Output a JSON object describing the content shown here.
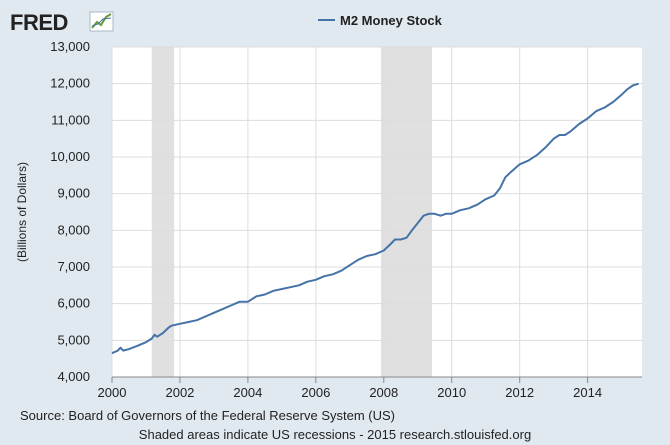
{
  "logo": {
    "text": "FRED"
  },
  "footer": {
    "source": "Source: Board of Governors of the Federal Reserve System (US)",
    "note": "Shaded areas indicate US recessions - 2015 research.stlouisfed.org"
  },
  "colors": {
    "background": "#e1e9f0",
    "plot_bg": "#ffffff",
    "line": "#4572a7",
    "recession": "#e0e0e0",
    "grid": "#dddddd"
  },
  "chart_data": {
    "type": "line",
    "title": "",
    "xlabel": "",
    "ylabel": "(Billions of Dollars)",
    "xlim": [
      2000.0,
      2015.6
    ],
    "ylim": [
      4000,
      13000
    ],
    "grid": true,
    "legend_position": "top-center",
    "x_ticks": [
      2000,
      2002,
      2004,
      2006,
      2008,
      2010,
      2012,
      2014
    ],
    "x_tick_labels": [
      "2000",
      "2002",
      "2004",
      "2006",
      "2008",
      "2010",
      "2012",
      "2014"
    ],
    "y_ticks": [
      4000,
      5000,
      6000,
      7000,
      8000,
      9000,
      10000,
      11000,
      12000,
      13000
    ],
    "y_tick_labels": [
      "4,000",
      "5,000",
      "6,000",
      "7,000",
      "8,000",
      "9,000",
      "10,000",
      "11,000",
      "12,000",
      "13,000"
    ],
    "recessions": [
      [
        2001.17,
        2001.83
      ],
      [
        2007.92,
        2009.42
      ]
    ],
    "series": [
      {
        "name": "M2 Money Stock",
        "x": [
          2000.0,
          2000.17,
          2000.25,
          2000.33,
          2000.5,
          2000.75,
          2001.0,
          2001.17,
          2001.25,
          2001.33,
          2001.5,
          2001.67,
          2001.75,
          2002.0,
          2002.25,
          2002.5,
          2002.75,
          2003.0,
          2003.25,
          2003.5,
          2003.75,
          2004.0,
          2004.25,
          2004.5,
          2004.75,
          2005.0,
          2005.25,
          2005.5,
          2005.75,
          2006.0,
          2006.25,
          2006.5,
          2006.75,
          2007.0,
          2007.25,
          2007.5,
          2007.75,
          2008.0,
          2008.17,
          2008.33,
          2008.5,
          2008.67,
          2008.83,
          2009.0,
          2009.17,
          2009.33,
          2009.5,
          2009.67,
          2009.83,
          2010.0,
          2010.25,
          2010.5,
          2010.75,
          2011.0,
          2011.25,
          2011.42,
          2011.58,
          2011.75,
          2012.0,
          2012.25,
          2012.5,
          2012.75,
          2013.0,
          2013.17,
          2013.33,
          2013.5,
          2013.75,
          2014.0,
          2014.25,
          2014.5,
          2014.75,
          2015.0,
          2015.17,
          2015.33,
          2015.5
        ],
        "values": [
          4650,
          4720,
          4800,
          4720,
          4760,
          4850,
          4950,
          5050,
          5150,
          5100,
          5200,
          5350,
          5400,
          5450,
          5500,
          5550,
          5650,
          5750,
          5850,
          5950,
          6050,
          6050,
          6200,
          6250,
          6350,
          6400,
          6450,
          6500,
          6600,
          6650,
          6750,
          6800,
          6900,
          7050,
          7200,
          7300,
          7350,
          7450,
          7600,
          7750,
          7750,
          7800,
          8000,
          8200,
          8400,
          8450,
          8450,
          8400,
          8450,
          8450,
          8550,
          8600,
          8700,
          8850,
          8950,
          9150,
          9450,
          9600,
          9800,
          9900,
          10050,
          10250,
          10500,
          10600,
          10600,
          10700,
          10900,
          11050,
          11250,
          11350,
          11500,
          11700,
          11850,
          11950,
          12000
        ]
      }
    ]
  }
}
